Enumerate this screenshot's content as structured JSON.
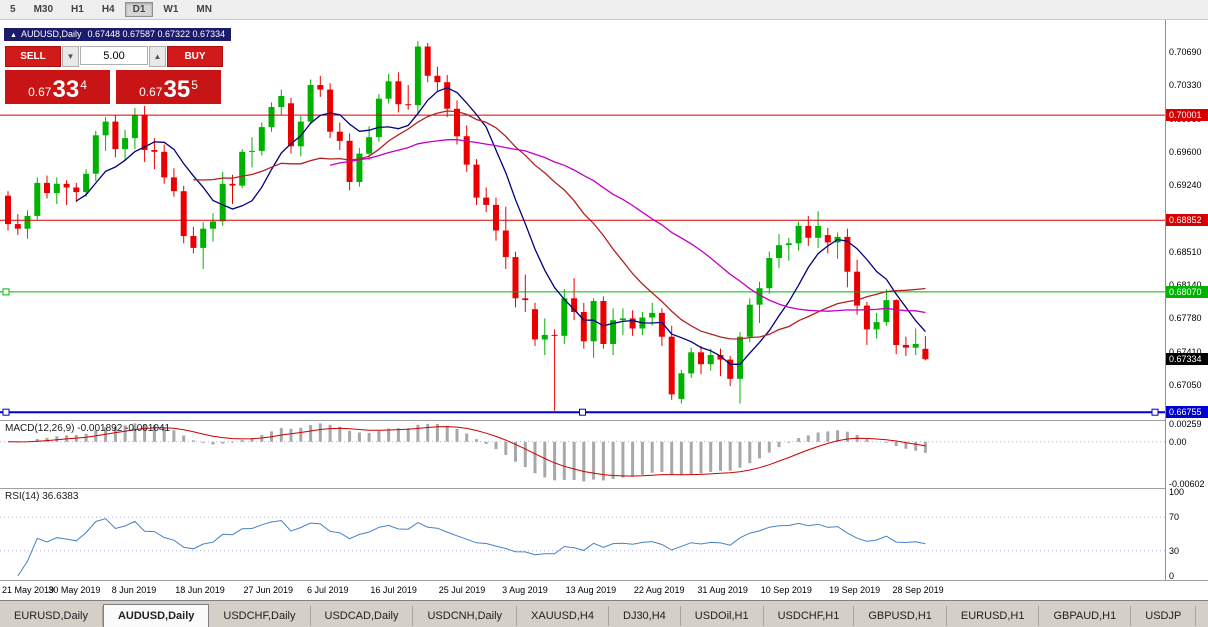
{
  "toolbar": {
    "timeframes": [
      {
        "label": "5",
        "active": false
      },
      {
        "label": "M30",
        "active": false
      },
      {
        "label": "H1",
        "active": false
      },
      {
        "label": "H4",
        "active": false
      },
      {
        "label": "D1",
        "active": true
      },
      {
        "label": "W1",
        "active": false
      },
      {
        "label": "MN",
        "active": false
      }
    ]
  },
  "chart": {
    "symbol_label": "AUDUSD,Daily",
    "ohlc": "0.67448 0.67587 0.67322 0.67334",
    "collapse_icon": "▲"
  },
  "trade_panel": {
    "sell_label": "SELL",
    "buy_label": "BUY",
    "volume": "5.00",
    "stepper_down": "▼",
    "stepper_up": "▲",
    "sell_price": {
      "prefix": "0.67",
      "big": "33",
      "sup": "4"
    },
    "buy_price": {
      "prefix": "0.67",
      "big": "35",
      "sup": "5"
    }
  },
  "indicators": {
    "macd_label": "MACD(12,26,9) -0.001892 -0.001041",
    "rsi_label": "RSI(14) 36.6383"
  },
  "tabs": [
    {
      "label": "EURUSD,Daily",
      "active": false
    },
    {
      "label": "AUDUSD,Daily",
      "active": true
    },
    {
      "label": "USDCHF,Daily",
      "active": false
    },
    {
      "label": "USDCAD,Daily",
      "active": false
    },
    {
      "label": "USDCNH,Daily",
      "active": false
    },
    {
      "label": "XAUUSD,H4",
      "active": false
    },
    {
      "label": "DJ30,H4",
      "active": false
    },
    {
      "label": "USDOil,H1",
      "active": false
    },
    {
      "label": "USDCHF,H1",
      "active": false
    },
    {
      "label": "GBPUSD,H1",
      "active": false
    },
    {
      "label": "EURUSD,H1",
      "active": false
    },
    {
      "label": "GBPAUD,H1",
      "active": false
    },
    {
      "label": "USDJP",
      "active": false
    }
  ],
  "chart_data": {
    "type": "candlestick",
    "symbol": "AUDUSD",
    "timeframe": "Daily",
    "ylim": [
      0.6667,
      0.7104
    ],
    "colors": {
      "up": "#00b200",
      "down": "#ea0000",
      "macd_hist": "#a8a8a8",
      "macd_signal": "#cc0000",
      "rsi_line": "#4682c8",
      "grid_dotted": "#b0b0d8"
    },
    "candles": [
      [
        0.6912,
        0.6917,
        0.6874,
        0.6881
      ],
      [
        0.6881,
        0.6892,
        0.6869,
        0.6876
      ],
      [
        0.6876,
        0.6896,
        0.6865,
        0.689
      ],
      [
        0.689,
        0.6932,
        0.6886,
        0.6926
      ],
      [
        0.6926,
        0.6934,
        0.6909,
        0.6915
      ],
      [
        0.6915,
        0.6932,
        0.6903,
        0.6925
      ],
      [
        0.6925,
        0.6929,
        0.6902,
        0.6921
      ],
      [
        0.6921,
        0.6926,
        0.6905,
        0.6916
      ],
      [
        0.6916,
        0.6941,
        0.6911,
        0.6936
      ],
      [
        0.6936,
        0.6983,
        0.6928,
        0.6978
      ],
      [
        0.6978,
        0.6998,
        0.6961,
        0.6993
      ],
      [
        0.6993,
        0.7,
        0.6954,
        0.6963
      ],
      [
        0.6963,
        0.6984,
        0.6951,
        0.6975
      ],
      [
        0.6975,
        0.7008,
        0.6963,
        0.7
      ],
      [
        0.7,
        0.701,
        0.6949,
        0.6962
      ],
      [
        0.6962,
        0.6975,
        0.6941,
        0.696
      ],
      [
        0.696,
        0.6968,
        0.6925,
        0.6932
      ],
      [
        0.6932,
        0.6942,
        0.6911,
        0.6917
      ],
      [
        0.6917,
        0.6923,
        0.686,
        0.6868
      ],
      [
        0.6868,
        0.6878,
        0.6849,
        0.6855
      ],
      [
        0.6855,
        0.6883,
        0.6832,
        0.6876
      ],
      [
        0.6876,
        0.6893,
        0.6862,
        0.6884
      ],
      [
        0.6884,
        0.6938,
        0.6879,
        0.6925
      ],
      [
        0.6925,
        0.6935,
        0.6903,
        0.6923
      ],
      [
        0.6923,
        0.6963,
        0.692,
        0.696
      ],
      [
        0.696,
        0.6976,
        0.6943,
        0.6961
      ],
      [
        0.6961,
        0.6992,
        0.6956,
        0.6987
      ],
      [
        0.6987,
        0.7014,
        0.6982,
        0.7009
      ],
      [
        0.7009,
        0.7028,
        0.7,
        0.7021
      ],
      [
        0.7013,
        0.7019,
        0.6958,
        0.6966
      ],
      [
        0.6966,
        0.6999,
        0.6955,
        0.6993
      ],
      [
        0.6993,
        0.7039,
        0.699,
        0.7033
      ],
      [
        0.7033,
        0.7043,
        0.702,
        0.7028
      ],
      [
        0.7028,
        0.7035,
        0.6975,
        0.6982
      ],
      [
        0.6982,
        0.6992,
        0.6962,
        0.6972
      ],
      [
        0.6972,
        0.698,
        0.6918,
        0.6927
      ],
      [
        0.6927,
        0.6964,
        0.6922,
        0.6958
      ],
      [
        0.6958,
        0.6988,
        0.6951,
        0.6976
      ],
      [
        0.6976,
        0.7023,
        0.6971,
        0.7018
      ],
      [
        0.7018,
        0.7045,
        0.7013,
        0.7037
      ],
      [
        0.7037,
        0.7047,
        0.7003,
        0.7012
      ],
      [
        0.7012,
        0.7033,
        0.7006,
        0.7011
      ],
      [
        0.7011,
        0.7081,
        0.7001,
        0.7075
      ],
      [
        0.7075,
        0.7079,
        0.7036,
        0.7043
      ],
      [
        0.7043,
        0.7053,
        0.7026,
        0.7036
      ],
      [
        0.7036,
        0.7044,
        0.6998,
        0.7007
      ],
      [
        0.7007,
        0.7016,
        0.6968,
        0.6977
      ],
      [
        0.6977,
        0.6989,
        0.6938,
        0.6946
      ],
      [
        0.6946,
        0.6952,
        0.6902,
        0.691
      ],
      [
        0.691,
        0.6921,
        0.6894,
        0.6902
      ],
      [
        0.6902,
        0.691,
        0.6863,
        0.6874
      ],
      [
        0.6874,
        0.69,
        0.6832,
        0.6845
      ],
      [
        0.6845,
        0.6851,
        0.679,
        0.68
      ],
      [
        0.68,
        0.6826,
        0.6785,
        0.6798
      ],
      [
        0.6788,
        0.6795,
        0.6748,
        0.6755
      ],
      [
        0.6755,
        0.6778,
        0.6738,
        0.676
      ],
      [
        0.676,
        0.6766,
        0.6677,
        0.6759
      ],
      [
        0.6759,
        0.681,
        0.675,
        0.68
      ],
      [
        0.68,
        0.6822,
        0.6776,
        0.6785
      ],
      [
        0.6785,
        0.6795,
        0.6745,
        0.6753
      ],
      [
        0.6753,
        0.68,
        0.6735,
        0.6797
      ],
      [
        0.6797,
        0.6802,
        0.6745,
        0.675
      ],
      [
        0.675,
        0.6789,
        0.6738,
        0.6776
      ],
      [
        0.6776,
        0.6789,
        0.676,
        0.6778
      ],
      [
        0.6778,
        0.6787,
        0.6759,
        0.6767
      ],
      [
        0.6767,
        0.6785,
        0.676,
        0.6779
      ],
      [
        0.6779,
        0.6795,
        0.677,
        0.6784
      ],
      [
        0.6784,
        0.6789,
        0.6748,
        0.6758
      ],
      [
        0.6758,
        0.677,
        0.6689,
        0.6695
      ],
      [
        0.669,
        0.6722,
        0.6685,
        0.6718
      ],
      [
        0.6718,
        0.6746,
        0.6713,
        0.6741
      ],
      [
        0.6741,
        0.6748,
        0.6717,
        0.6728
      ],
      [
        0.6728,
        0.6745,
        0.6721,
        0.6738
      ],
      [
        0.6738,
        0.6745,
        0.6715,
        0.6733
      ],
      [
        0.6733,
        0.6737,
        0.6704,
        0.6712
      ],
      [
        0.6712,
        0.6763,
        0.6685,
        0.6758
      ],
      [
        0.6758,
        0.68,
        0.6752,
        0.6793
      ],
      [
        0.6793,
        0.6818,
        0.6773,
        0.6811
      ],
      [
        0.6811,
        0.6851,
        0.6805,
        0.6844
      ],
      [
        0.6844,
        0.687,
        0.6833,
        0.6858
      ],
      [
        0.6858,
        0.6866,
        0.6841,
        0.686
      ],
      [
        0.686,
        0.6884,
        0.6852,
        0.6879
      ],
      [
        0.6879,
        0.689,
        0.6857,
        0.6866
      ],
      [
        0.6866,
        0.6895,
        0.6855,
        0.6879
      ],
      [
        0.6869,
        0.6877,
        0.6849,
        0.6861
      ],
      [
        0.6861,
        0.6872,
        0.6843,
        0.6867
      ],
      [
        0.6867,
        0.6876,
        0.6812,
        0.6829
      ],
      [
        0.6829,
        0.6842,
        0.6782,
        0.6792
      ],
      [
        0.6792,
        0.6796,
        0.6749,
        0.6766
      ],
      [
        0.6766,
        0.6784,
        0.6756,
        0.6774
      ],
      [
        0.6774,
        0.681,
        0.677,
        0.6798
      ],
      [
        0.6798,
        0.6799,
        0.6739,
        0.6749
      ],
      [
        0.6749,
        0.6758,
        0.6737,
        0.6746
      ],
      [
        0.6746,
        0.6767,
        0.6738,
        0.675
      ],
      [
        0.67448,
        0.67587,
        0.67322,
        0.67334
      ]
    ],
    "moving_averages": [
      {
        "period": 8,
        "color": "#00007a"
      },
      {
        "period": 20,
        "color": "#b22222"
      },
      {
        "period": 34,
        "color": "#c400c4"
      }
    ],
    "hlines": [
      {
        "value": 0.70001,
        "label": "0.70001",
        "color": "#d60000",
        "width": 1,
        "markers": "none"
      },
      {
        "value": 0.68852,
        "label": "0.68852",
        "color": "#d60000",
        "width": 1,
        "markers": "none"
      },
      {
        "value": 0.6807,
        "label": "0.68070",
        "color": "#00b400",
        "width": 1,
        "markers": "left"
      },
      {
        "value": 0.66755,
        "label": "0.66755",
        "color": "#0000cc",
        "width": 2,
        "markers": "selected"
      }
    ],
    "current_price": {
      "value": 0.67334,
      "label": "0.67334",
      "color": "#000000"
    },
    "price_ticks": [
      "0.70690",
      "0.70330",
      "0.69960",
      "0.69600",
      "0.69240",
      "0.68510",
      "0.68140",
      "0.67780",
      "0.67410",
      "0.67050"
    ],
    "date_ticks": [
      {
        "label": "21 May 2019",
        "i": 0
      },
      {
        "label": "30 May 2019",
        "i": 7
      },
      {
        "label": "8 Jun 2019",
        "i": 13.5
      },
      {
        "label": "18 Jun 2019",
        "i": 20
      },
      {
        "label": "27 Jun 2019",
        "i": 27
      },
      {
        "label": "6 Jul 2019",
        "i": 33.5
      },
      {
        "label": "16 Jul 2019",
        "i": 40
      },
      {
        "label": "25 Jul 2019",
        "i": 47
      },
      {
        "label": "3 Aug 2019",
        "i": 53.5
      },
      {
        "label": "13 Aug 2019",
        "i": 60
      },
      {
        "label": "22 Aug 2019",
        "i": 67
      },
      {
        "label": "31 Aug 2019",
        "i": 73.5
      },
      {
        "label": "10 Sep 2019",
        "i": 80
      },
      {
        "label": "19 Sep 2019",
        "i": 87
      },
      {
        "label": "28 Sep 2019",
        "i": 93.5
      }
    ],
    "macd": {
      "params": [
        12,
        26,
        9
      ],
      "ylim": [
        -0.0062,
        0.0027
      ],
      "ticks": [
        {
          "label": "0.00259",
          "v": 0.00259
        },
        {
          "label": "0.00",
          "v": 0
        },
        {
          "label": "-0.00602",
          "v": -0.00602
        }
      ]
    },
    "rsi": {
      "period": 14,
      "ylim": [
        0,
        100
      ],
      "ticks": [
        {
          "label": "100",
          "v": 100
        },
        {
          "label": "70",
          "v": 70
        },
        {
          "label": "30",
          "v": 30
        },
        {
          "label": "0",
          "v": 0
        }
      ],
      "dotted": [
        70,
        30
      ]
    }
  }
}
